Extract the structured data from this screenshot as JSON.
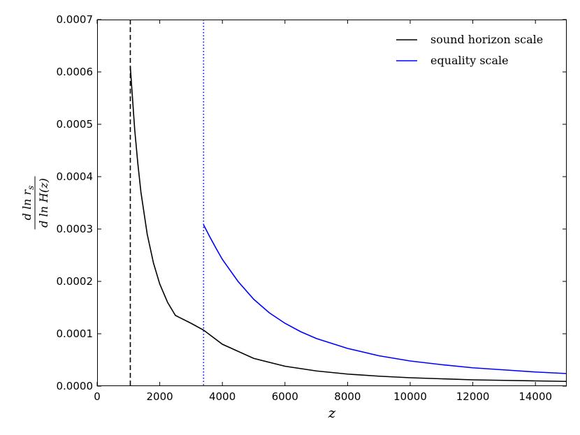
{
  "chart_data": {
    "type": "line",
    "xlabel": "z",
    "ylabel": {
      "numerator": "d ln r",
      "numerator_sub": "s",
      "denominator": "d ln H(z)"
    },
    "xlim": [
      0,
      15000
    ],
    "ylim": [
      0,
      0.0007
    ],
    "grid": false,
    "legend_position": "top-right",
    "x_ticks": [
      0,
      2000,
      4000,
      6000,
      8000,
      10000,
      12000,
      14000
    ],
    "x_tick_labels": [
      "0",
      "2000",
      "4000",
      "6000",
      "8000",
      "10000",
      "12000",
      "14000"
    ],
    "y_ticks": [
      0,
      0.0001,
      0.0002,
      0.0003,
      0.0004,
      0.0005,
      0.0006,
      0.0007
    ],
    "y_tick_labels": [
      "0.0000",
      "0.0001",
      "0.0002",
      "0.0003",
      "0.0004",
      "0.0005",
      "0.0006",
      "0.0007"
    ],
    "vlines": [
      {
        "x": 1060,
        "color": "#000000",
        "style": "dashed"
      },
      {
        "x": 3400,
        "color": "#0000ff",
        "style": "dotted"
      }
    ],
    "series": [
      {
        "name": "sound horizon scale",
        "color": "#000000",
        "x": [
          1060,
          1100,
          1200,
          1300,
          1400,
          1600,
          1800,
          2000,
          2250,
          2500,
          3000,
          3400,
          4000,
          5000,
          6000,
          7000,
          8000,
          9000,
          10000,
          11000,
          12000,
          13000,
          14000,
          15000
        ],
        "y": [
          0.00061,
          0.000575,
          0.00049,
          0.000425,
          0.00037,
          0.00029,
          0.000235,
          0.000195,
          0.00016,
          0.000135,
          0.00012,
          0.000107,
          8e-05,
          5.3e-05,
          3.8e-05,
          2.9e-05,
          2.3e-05,
          1.9e-05,
          1.6e-05,
          1.4e-05,
          1.2e-05,
          1.1e-05,
          1e-05,
          9e-06
        ]
      },
      {
        "name": "equality scale",
        "color": "#0000ff",
        "x": [
          3400,
          3600,
          3800,
          4000,
          4500,
          5000,
          5500,
          6000,
          6500,
          7000,
          8000,
          9000,
          10000,
          11000,
          12000,
          13000,
          14000,
          15000
        ],
        "y": [
          0.000308,
          0.000285,
          0.000263,
          0.000242,
          0.0002,
          0.000166,
          0.00014,
          0.00012,
          0.000104,
          9.1e-05,
          7.2e-05,
          5.8e-05,
          4.8e-05,
          4.1e-05,
          3.5e-05,
          3.1e-05,
          2.7e-05,
          2.4e-05
        ]
      }
    ]
  }
}
